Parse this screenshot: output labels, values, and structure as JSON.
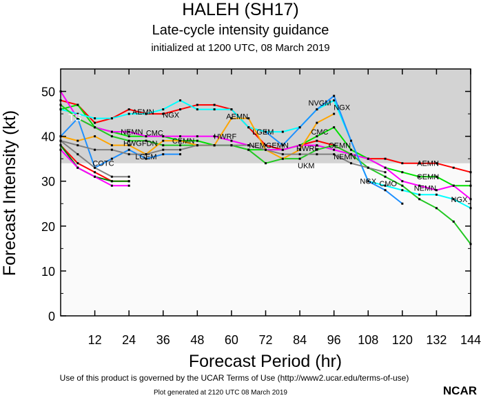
{
  "header": {
    "title": "HALEH (SH17)",
    "subtitle": "Late-cycle intensity guidance",
    "initialized": "initialized at 1200 UTC, 08 March 2019"
  },
  "footer": {
    "terms": "Use of this product is governed by the UCAR Terms of Use (http://www2.ucar.edu/terms-of-use)",
    "generated": "Plot generated at 2120 UTC  08 March 2019",
    "logo": "NCAR"
  },
  "chart_data": {
    "type": "line",
    "xlabel": "Forecast Period (hr)",
    "ylabel": "Forecast Intensity (kt)",
    "xlim": [
      0,
      144
    ],
    "ylim": [
      0,
      55
    ],
    "xticks": [
      12,
      24,
      36,
      48,
      60,
      72,
      84,
      96,
      108,
      120,
      132,
      144
    ],
    "yticks": [
      0,
      10,
      20,
      30,
      40,
      50
    ],
    "shaded_band": {
      "from": 34,
      "to": 55,
      "color": "#d3d3d3",
      "label": "TS"
    },
    "series": [
      {
        "name": "AEMN",
        "color": "#ff0000",
        "x": [
          0,
          6,
          12,
          18,
          24,
          30,
          36,
          42,
          48,
          54,
          60,
          66,
          72,
          78,
          84,
          90,
          96,
          102,
          108,
          114,
          120,
          126,
          132,
          138,
          144
        ],
        "y": [
          48,
          47,
          43,
          44,
          46,
          45,
          45,
          46,
          47,
          47,
          46,
          42,
          38,
          37,
          38,
          39,
          38,
          36,
          35,
          35,
          34,
          34,
          34,
          33,
          32
        ]
      },
      {
        "name": "CEMN",
        "color": "#00e000",
        "x": [
          0,
          6,
          12,
          18,
          24,
          30,
          36,
          42,
          48,
          54,
          60,
          66,
          72,
          78,
          84,
          90,
          96,
          102,
          108,
          114,
          120,
          126,
          132,
          138,
          144
        ],
        "y": [
          46,
          47,
          42,
          41,
          40,
          40,
          40,
          39,
          39,
          38,
          38,
          37,
          37,
          37,
          38,
          40,
          42,
          37,
          35,
          33,
          32,
          31,
          31,
          29,
          29
        ]
      },
      {
        "name": "NEMN",
        "color": "#ff00ff",
        "x": [
          0,
          6,
          12,
          18,
          24,
          30,
          36,
          42,
          48,
          54,
          60,
          66,
          72,
          78,
          84,
          90,
          96,
          102,
          108,
          114,
          120,
          126,
          132,
          138,
          144
        ],
        "y": [
          50,
          44,
          42,
          41,
          41,
          40,
          40,
          40,
          40,
          40,
          39,
          38,
          37,
          37,
          38,
          38,
          37,
          36,
          35,
          33,
          30,
          29,
          28,
          29,
          26
        ]
      },
      {
        "name": "NGX",
        "color": "#00ffff",
        "x": [
          0,
          6,
          12,
          18,
          24,
          30,
          36,
          42,
          48,
          54,
          60,
          66,
          72,
          78,
          84,
          90,
          96,
          102,
          108,
          114,
          120,
          126,
          132,
          138,
          144
        ],
        "y": [
          46,
          45,
          44,
          44,
          45,
          45,
          46,
          48,
          46,
          46,
          46,
          42,
          41,
          41,
          42,
          46,
          48,
          39,
          30,
          29,
          28,
          27,
          27,
          26,
          24
        ]
      },
      {
        "name": "CMO",
        "color": "#22c822",
        "x": [
          0,
          6,
          12,
          18,
          24,
          30,
          36,
          42,
          48,
          54,
          60,
          66,
          72,
          78,
          84,
          90,
          96,
          102,
          108,
          114,
          120,
          126,
          132,
          138,
          144
        ],
        "y": [
          47,
          44,
          42,
          40,
          39,
          39,
          38,
          38,
          38,
          38,
          38,
          37,
          34,
          35,
          35,
          37,
          38,
          36,
          33,
          31,
          29,
          26,
          24,
          21,
          16
        ]
      },
      {
        "name": "HWRF",
        "color": "#ffa500",
        "x": [
          0,
          6,
          12,
          18,
          24,
          30,
          36,
          42,
          48,
          54,
          60,
          66,
          72,
          78,
          84,
          90,
          96
        ],
        "y": [
          40,
          39,
          40,
          38,
          38,
          36,
          39,
          39,
          38,
          38,
          44,
          44,
          37,
          35,
          37,
          43,
          45
        ]
      },
      {
        "name": "COTC",
        "color": "#1e90ff",
        "x": [
          0,
          6,
          12,
          18,
          24,
          30,
          36,
          42
        ],
        "y": [
          40,
          44,
          33,
          35,
          37,
          35,
          36,
          36
        ]
      },
      {
        "name": "NVGM",
        "color": "#1e90ff",
        "x": [
          72,
          78,
          84,
          90,
          96,
          102,
          108,
          114,
          120
        ],
        "y": [
          41,
          38,
          42,
          46,
          49,
          39,
          30,
          28,
          25
        ]
      },
      {
        "name": "UKM",
        "color": "#808080",
        "x": [
          0,
          6,
          12,
          18,
          24,
          30,
          36,
          42,
          48,
          54,
          60,
          66,
          72,
          78,
          84,
          90,
          96,
          102,
          108,
          114
        ],
        "y": [
          39,
          38,
          37,
          37,
          36,
          36,
          37,
          37,
          38,
          38,
          38,
          38,
          37,
          36,
          36,
          36,
          36,
          34,
          33,
          32
        ]
      },
      {
        "color": "#808080",
        "x": [
          0,
          6,
          12,
          18,
          24
        ],
        "y": [
          39,
          36,
          33,
          31,
          31
        ]
      },
      {
        "color": "#ff0000",
        "x": [
          0,
          6,
          12,
          18,
          24
        ],
        "y": [
          38,
          34,
          32,
          30,
          30
        ]
      },
      {
        "color": "#008000",
        "x": [
          0,
          6,
          12,
          18,
          24
        ],
        "y": [
          38,
          33,
          31,
          30,
          30
        ]
      },
      {
        "color": "#ff00ff",
        "x": [
          0,
          6,
          12,
          18,
          24
        ],
        "y": [
          37,
          33,
          31,
          29,
          29
        ]
      }
    ],
    "annotations": [
      {
        "text": "TS",
        "x": 5,
        "y": 44,
        "color": "#ffffff"
      },
      {
        "text": "AEMN",
        "x": 29,
        "y": 45.5
      },
      {
        "text": "NGX",
        "x": 32,
        "y": 44.8
      },
      {
        "text": "NEMN",
        "x": 25,
        "y": 41
      },
      {
        "text": "CMC",
        "x": 33,
        "y": 40.8
      },
      {
        "text": "CEMN",
        "x": 31,
        "y": 39
      },
      {
        "text": "HWGFDN",
        "x": 28,
        "y": 38.5
      },
      {
        "text": "LGEM",
        "x": 30,
        "y": 37.5
      },
      {
        "text": "COTC",
        "x": 15,
        "y": 34
      },
      {
        "text": "HWRF",
        "x": 51,
        "y": 40
      },
      {
        "text": "NEMGEMN",
        "x": 61,
        "y": 38
      },
      {
        "text": "LGEM",
        "x": 59,
        "y": 39
      },
      {
        "text": "AEMN",
        "x": 62,
        "y": 44.5
      },
      {
        "text": "HWRF",
        "x": 80,
        "y": 37.3
      },
      {
        "text": "NVGM",
        "x": 91,
        "y": 47.5
      },
      {
        "text": "NGX",
        "x": 92,
        "y": 46.5
      },
      {
        "text": "CMC",
        "x": 91,
        "y": 41
      },
      {
        "text": "CEMN",
        "x": 98,
        "y": 38
      },
      {
        "text": "NEMN",
        "x": 93,
        "y": 37.5
      },
      {
        "text": "UKM",
        "x": 93,
        "y": 35.5
      },
      {
        "text": "NGX",
        "x": 108,
        "y": 30
      },
      {
        "text": "CMO",
        "x": 115,
        "y": 29.5
      },
      {
        "text": "AEMN",
        "x": 129,
        "y": 34
      },
      {
        "text": "CEMN",
        "x": 129,
        "y": 31
      },
      {
        "text": "NEMN",
        "x": 128,
        "y": 28.5
      },
      {
        "text": "NGX",
        "x": 140,
        "y": 26
      }
    ]
  }
}
